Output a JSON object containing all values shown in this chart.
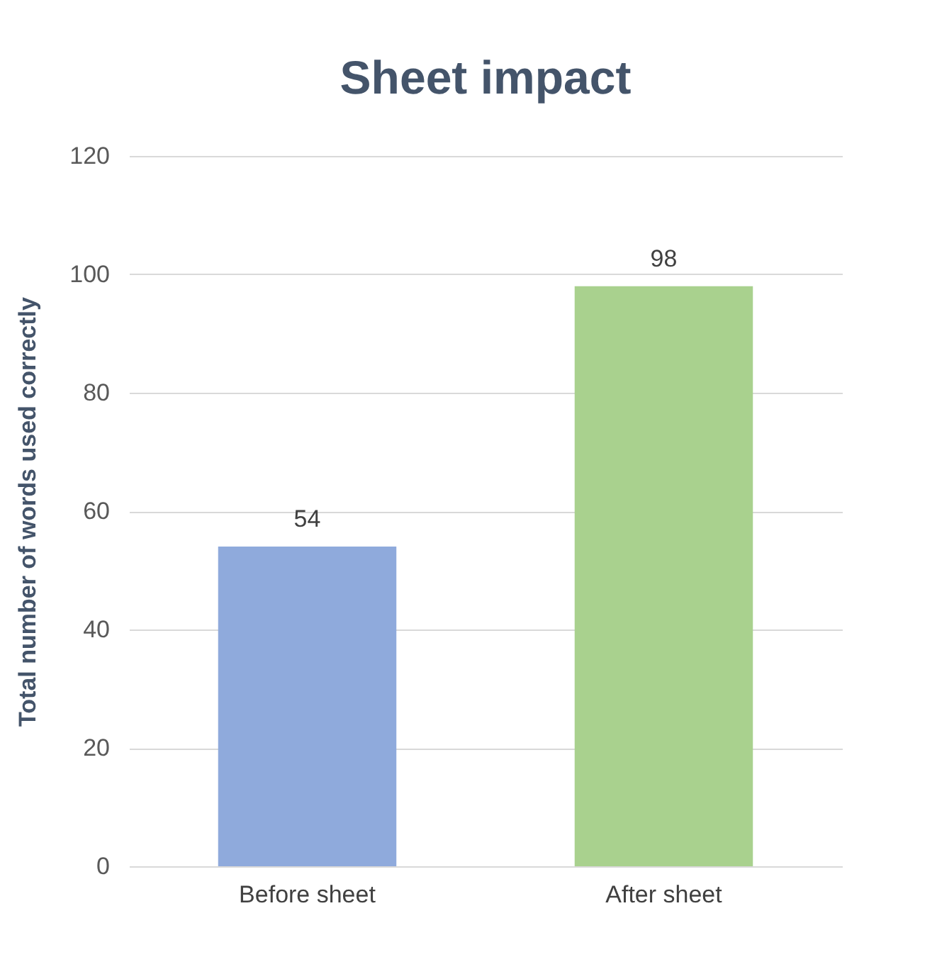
{
  "chart_data": {
    "type": "bar",
    "title": "Sheet impact",
    "ylabel": "Total number of words used correctly",
    "categories": [
      "Before sheet",
      "After sheet"
    ],
    "values": [
      54,
      98
    ],
    "colors": [
      "#8faadc",
      "#a9d18e"
    ],
    "ylim": [
      0,
      120
    ],
    "yticks": [
      0,
      20,
      40,
      60,
      80,
      100,
      120
    ],
    "grid": "y",
    "data_labels": true
  }
}
